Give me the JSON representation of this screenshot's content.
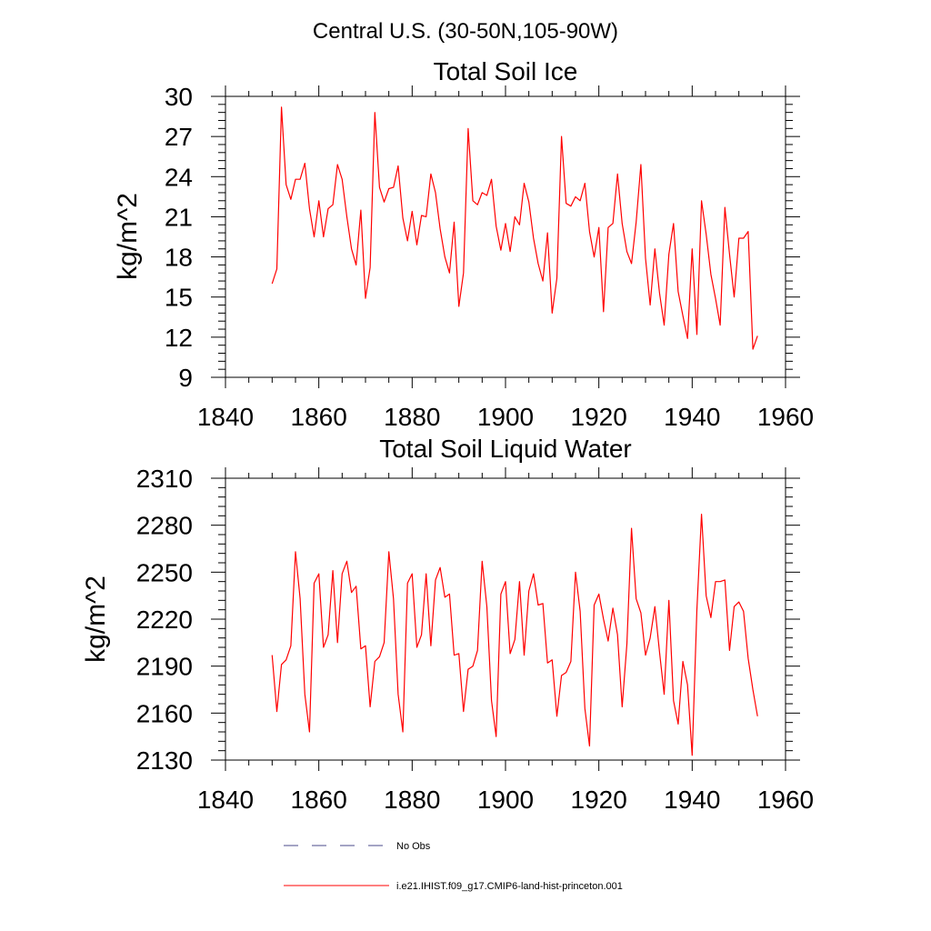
{
  "suptitle": "Central U.S. (30-50N,105-90W)",
  "chart_data": [
    {
      "type": "line",
      "title": "Total Soil Ice",
      "xlabel": "",
      "ylabel": "kg/m^2",
      "xlim": [
        1840,
        1960
      ],
      "ylim": [
        9,
        30
      ],
      "xticks": [
        1840,
        1860,
        1880,
        1900,
        1920,
        1940,
        1960
      ],
      "yticks": [
        9,
        12,
        15,
        18,
        21,
        24,
        27,
        30
      ],
      "series": [
        {
          "name": "i.e21.IHIST.f09_g17.CMIP6-land-hist-princeton.001",
          "color": "#ff0000",
          "x_start": 1850,
          "values": [
            16.0,
            17.1,
            29.2,
            23.4,
            22.3,
            23.8,
            23.8,
            25.0,
            21.6,
            19.5,
            22.2,
            19.5,
            21.6,
            21.9,
            24.9,
            23.8,
            21.0,
            18.6,
            17.4,
            21.5,
            14.9,
            17.2,
            28.8,
            23.2,
            22.1,
            23.1,
            23.2,
            24.8,
            20.9,
            19.2,
            21.4,
            18.9,
            21.1,
            21.0,
            24.2,
            22.8,
            20.1,
            18.0,
            16.8,
            20.6,
            14.3,
            16.8,
            27.6,
            22.2,
            21.9,
            22.8,
            22.6,
            23.8,
            20.3,
            18.5,
            20.5,
            18.4,
            21.0,
            20.4,
            23.5,
            22.1,
            19.4,
            17.5,
            16.2,
            19.8,
            13.8,
            16.4,
            27.0,
            22.0,
            21.8,
            22.5,
            22.2,
            23.5,
            19.9,
            18.0,
            20.2,
            13.9,
            20.2,
            20.5,
            24.2,
            20.5,
            18.4,
            17.5,
            20.6,
            24.9,
            17.9,
            14.4,
            18.6,
            15.3,
            12.9,
            18.2,
            20.5,
            15.4,
            13.6,
            11.9,
            18.6,
            12.2,
            22.2,
            19.7,
            16.7,
            14.9,
            12.9,
            21.7,
            18.2,
            15.0,
            19.4,
            19.4,
            19.9,
            11.1,
            12.1
          ]
        }
      ]
    },
    {
      "type": "line",
      "title": "Total Soil Liquid Water",
      "xlabel": "",
      "ylabel": "kg/m^2",
      "xlim": [
        1840,
        1960
      ],
      "ylim": [
        2130,
        2310
      ],
      "xticks": [
        1840,
        1860,
        1880,
        1900,
        1920,
        1940,
        1960
      ],
      "yticks": [
        2130,
        2160,
        2190,
        2220,
        2250,
        2280,
        2310
      ],
      "series": [
        {
          "name": "i.e21.IHIST.f09_g17.CMIP6-land-hist-princeton.001",
          "color": "#ff0000",
          "x_start": 1850,
          "values": [
            2197,
            2161,
            2191,
            2194,
            2203,
            2263,
            2233,
            2172,
            2148,
            2243,
            2249,
            2202,
            2210,
            2251,
            2205,
            2249,
            2257,
            2237,
            2241,
            2201,
            2203,
            2164,
            2193,
            2196,
            2205,
            2263,
            2233,
            2172,
            2148,
            2243,
            2249,
            2202,
            2210,
            2249,
            2203,
            2245,
            2253,
            2234,
            2236,
            2197,
            2198,
            2161,
            2188,
            2190,
            2200,
            2257,
            2228,
            2168,
            2145,
            2236,
            2244,
            2198,
            2207,
            2244,
            2197,
            2238,
            2249,
            2229,
            2230,
            2192,
            2194,
            2158,
            2184,
            2186,
            2193,
            2250,
            2225,
            2163,
            2139,
            2229,
            2236,
            2220,
            2206,
            2227,
            2210,
            2164,
            2204,
            2278,
            2233,
            2224,
            2197,
            2208,
            2228,
            2199,
            2172,
            2232,
            2168,
            2153,
            2193,
            2178,
            2133,
            2226,
            2287,
            2235,
            2221,
            2244,
            2244,
            2245,
            2200,
            2228,
            2231,
            2225,
            2195,
            2175,
            2158
          ]
        }
      ]
    }
  ],
  "legend": [
    {
      "label": "No Obs",
      "color": "#4a4a8a",
      "style": "dashed"
    },
    {
      "label": "i.e21.IHIST.f09_g17.CMIP6-land-hist-princeton.001",
      "color": "#ff0000",
      "style": "solid"
    }
  ]
}
